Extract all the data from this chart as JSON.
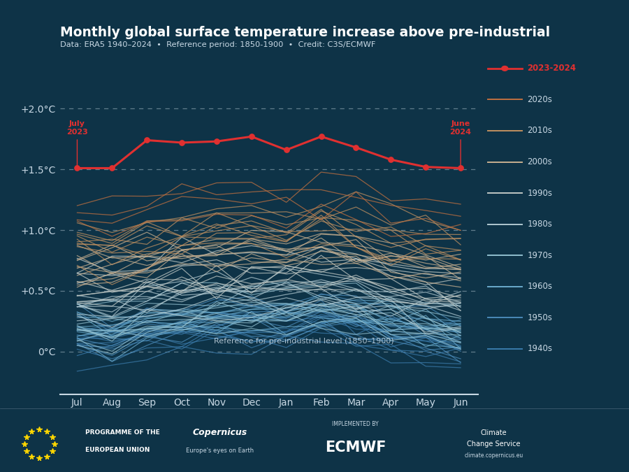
{
  "title": "Monthly global surface temperature increase above pre-industrial",
  "subtitle": "Data: ERA5 1940–2024  •  Reference period: 1850-1900  •  Credit: C3S/ECMWF",
  "bg_color": "#0e3347",
  "text_color": "#c8d8e4",
  "months": [
    "Jul",
    "Aug",
    "Sep",
    "Oct",
    "Nov",
    "Dec",
    "Jan",
    "Feb",
    "Mar",
    "Apr",
    "May",
    "Jun"
  ],
  "yticks": [
    0.0,
    0.5,
    1.0,
    1.5,
    2.0
  ],
  "ylabels": [
    "0°C",
    "+0.5°C",
    "+1.0°C",
    "+1.5°C",
    "+2.0°C"
  ],
  "ylim": [
    -0.35,
    2.35
  ],
  "highlight_line": [
    1.51,
    1.51,
    1.74,
    1.72,
    1.73,
    1.77,
    1.66,
    1.77,
    1.68,
    1.58,
    1.52,
    1.51
  ],
  "ref_label": "Reference for pre-industrial level (1850–1900)",
  "decade_colors": {
    "1940s": "#3a7aaa",
    "1950s": "#4a8ab8",
    "1960s": "#6aabcc",
    "1970s": "#90bece",
    "1980s": "#b0c8d0",
    "1990s": "#c0c8c4",
    "2000s": "#c8b090",
    "2010s": "#c09060",
    "2020s": "#c07040"
  },
  "seed": 42
}
